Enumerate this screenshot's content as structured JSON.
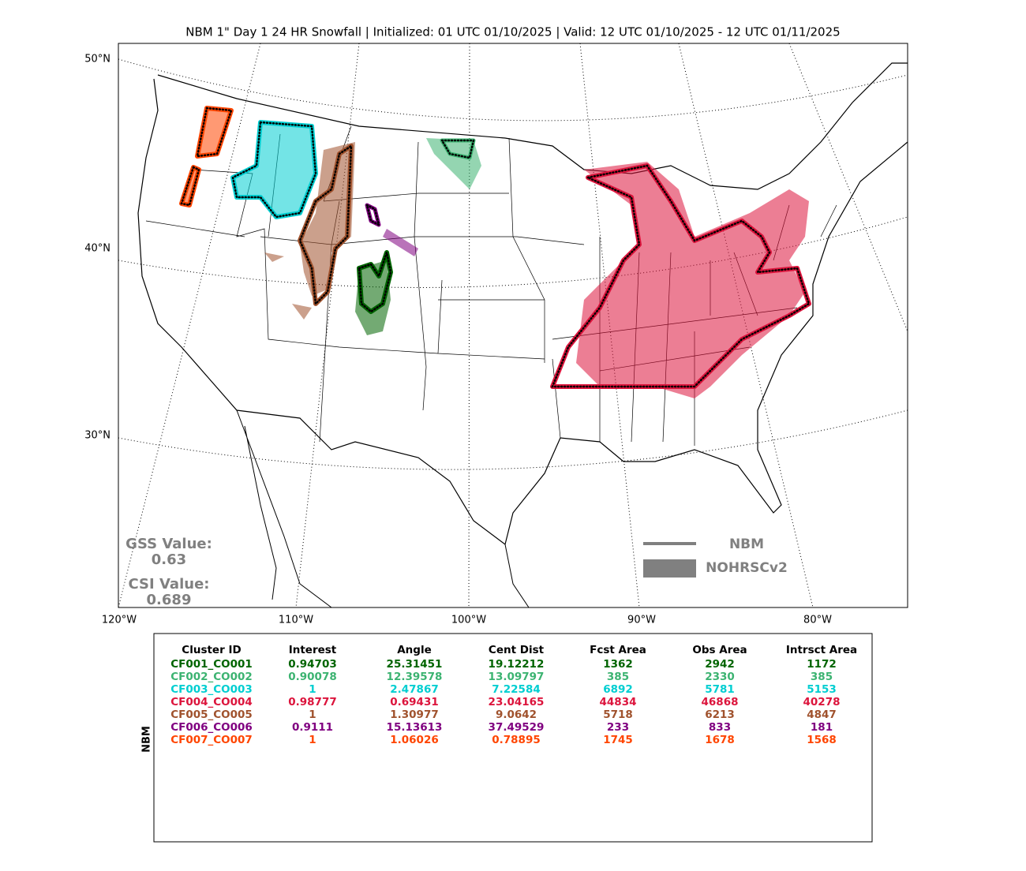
{
  "header": {
    "title": "NBM 1\" Day 1 24 HR Snowfall | Initialized: 01 UTC 01/10/2025 | Valid: 12 UTC 01/10/2025 - 12 UTC 01/11/2025"
  },
  "map": {
    "lat_labels": [
      "50°N",
      "40°N",
      "30°N"
    ],
    "lon_labels": [
      "120°W",
      "110°W",
      "100°W",
      "90°W",
      "80°W"
    ],
    "scores": {
      "gss_label": "GSS Value:",
      "gss_value": 0.63,
      "csi_label": "CSI Value:",
      "csi_value": 0.689
    },
    "legend": {
      "line": "NBM",
      "fill": "NOHRSCv2"
    }
  },
  "table": {
    "side_label": "NBM",
    "columns": [
      "Cluster ID",
      "Interest",
      "Angle",
      "Cent Dist",
      "Fcst Area",
      "Obs Area",
      "Intrsct Area"
    ],
    "rows": [
      {
        "color": "#006400",
        "cells": [
          "CF001_CO001",
          0.94703,
          25.31451,
          19.12212,
          1362,
          2942,
          1172
        ]
      },
      {
        "color": "#3cb371",
        "cells": [
          "CF002_CO002",
          0.90078,
          12.39578,
          13.09797,
          385,
          2330,
          385
        ]
      },
      {
        "color": "#00ced1",
        "cells": [
          "CF003_CO003",
          1,
          2.47867,
          7.22584,
          6892,
          5781,
          5153
        ]
      },
      {
        "color": "#dc143c",
        "cells": [
          "CF004_CO004",
          0.98777,
          0.69431,
          23.04165,
          44834,
          46868,
          40278
        ]
      },
      {
        "color": "#a0522d",
        "cells": [
          "CF005_CO005",
          1,
          1.30977,
          9.0642,
          5718,
          6213,
          4847
        ]
      },
      {
        "color": "#800080",
        "cells": [
          "CF006_CO006",
          0.9111,
          15.13613,
          37.49529,
          233,
          833,
          181
        ]
      },
      {
        "color": "#ff4500",
        "cells": [
          "CF007_CO007",
          1,
          1.06026,
          0.78895,
          1745,
          1678,
          1568
        ]
      }
    ]
  }
}
